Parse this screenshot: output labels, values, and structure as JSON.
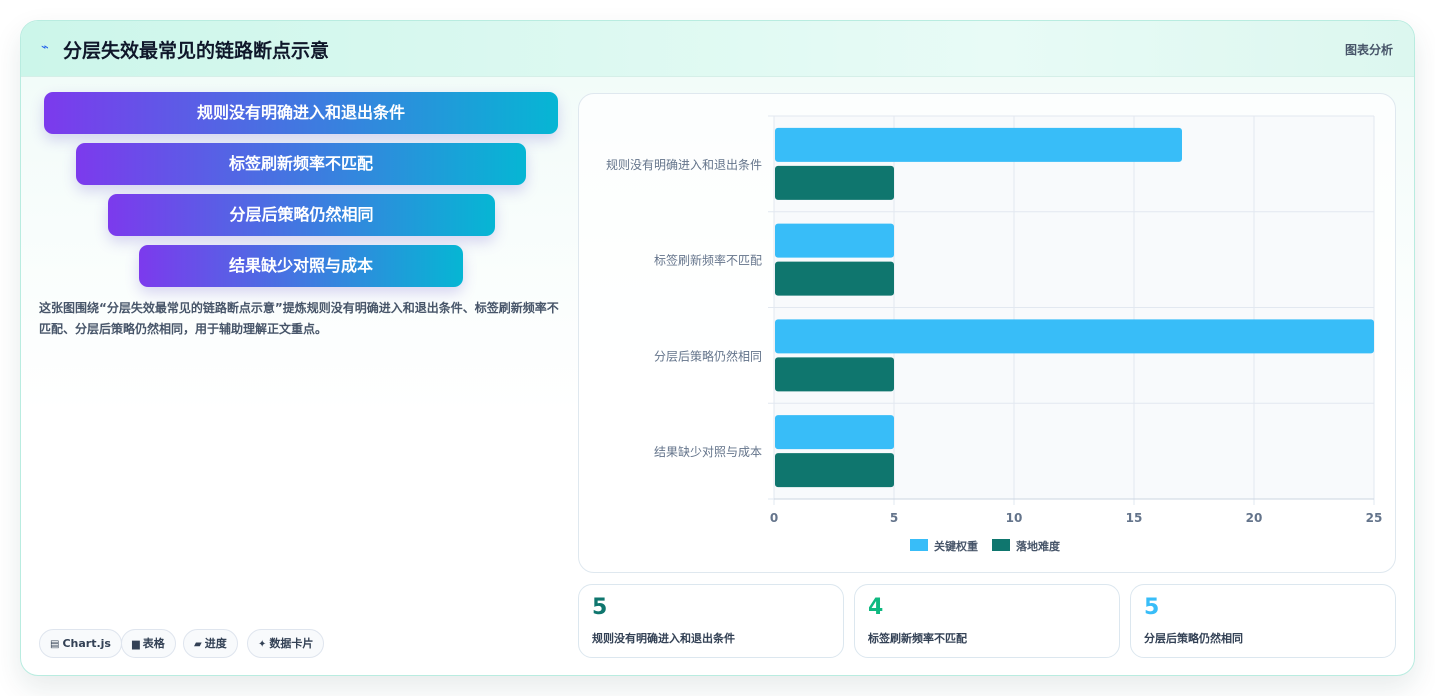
{
  "header": {
    "icon": "lightning-icon",
    "title": "分层失效最常见的链路断点示意",
    "tag": "图表分析"
  },
  "funnel": {
    "items": [
      {
        "label": "规则没有明确进入和退出条件"
      },
      {
        "label": "标签刷新频率不匹配"
      },
      {
        "label": "分层后策略仍然相同"
      },
      {
        "label": "结果缺少对照与成本"
      }
    ],
    "colors": [
      "#7c3aed",
      "#06b6d4"
    ]
  },
  "description": "这张图围绕“分层失效最常见的链路断点示意”提炼规则没有明确进入和退出条件、标签刷新频率不匹配、分层后策略仍然相同，用于辅助理解正文重点。",
  "pills": [
    {
      "icon": "chart-icon",
      "glyph": "▤",
      "label": "Chart.js"
    },
    {
      "icon": "table-icon",
      "glyph": "▆",
      "label": "表格"
    },
    {
      "icon": "progress-icon",
      "glyph": "▰",
      "label": "进度"
    },
    {
      "icon": "sparkle-icon",
      "glyph": "✦",
      "label": "数据卡片"
    }
  ],
  "chart_data": {
    "type": "bar",
    "orientation": "horizontal",
    "categories": [
      "规则没有明确进入和退出条件",
      "标签刷新频率不匹配",
      "分层后策略仍然相同",
      "结果缺少对照与成本"
    ],
    "series": [
      {
        "name": "关键权重",
        "color": "#38bdf8",
        "values": [
          17,
          5,
          25,
          5
        ]
      },
      {
        "name": "落地难度",
        "color": "#0f766e",
        "values": [
          5,
          5,
          5,
          5
        ]
      }
    ],
    "xlim": [
      0,
      25
    ],
    "xticks": [
      0,
      5,
      10,
      15,
      20,
      25
    ],
    "grid": true,
    "legend_position": "bottom"
  },
  "stats": [
    {
      "value": "5",
      "label": "规则没有明确进入和退出条件",
      "color": "#0f766e"
    },
    {
      "value": "4",
      "label": "标签刷新频率不匹配",
      "color": "#10b981"
    },
    {
      "value": "5",
      "label": "分层后策略仍然相同",
      "color": "#38bdf8"
    }
  ]
}
